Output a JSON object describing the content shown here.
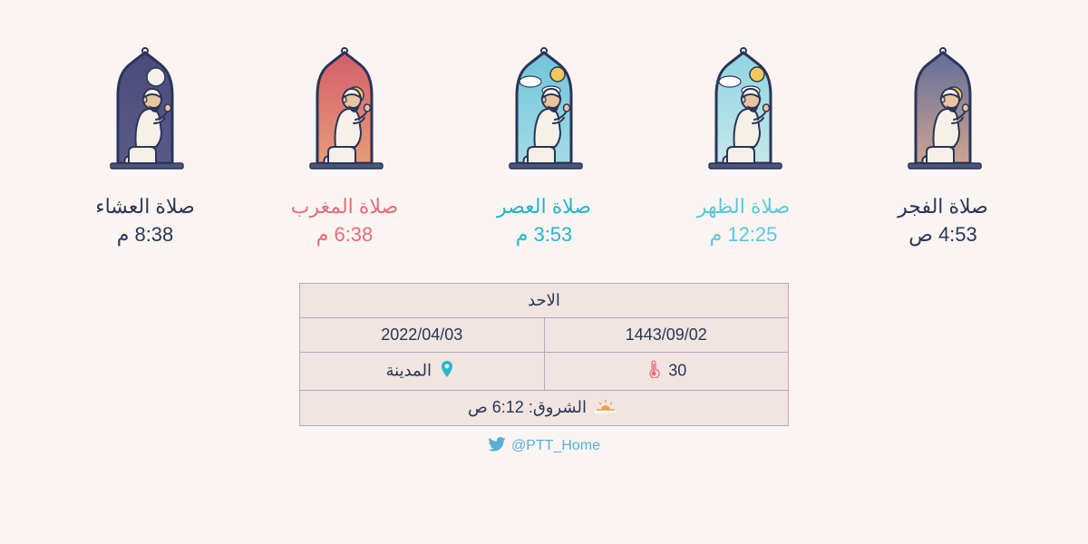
{
  "background_color": "#faf5f3",
  "prayers": [
    {
      "id": "isha",
      "name": "صلاة العشاء",
      "time": "8:38 م",
      "name_color": "#2b3557",
      "time_color": "#2b3557",
      "sky_top": "#4a4a7a",
      "sky_bottom": "#5b5b8a",
      "celestial": "moon",
      "celestial_color": "#f5f0e8"
    },
    {
      "id": "maghrib",
      "name": "صلاة المغرب",
      "time": "6:38 م",
      "name_color": "#e76b7a",
      "time_color": "#e76b7a",
      "sky_top": "#d45a6a",
      "sky_bottom": "#e8a07a",
      "celestial": "sun-setting",
      "celestial_color": "#f5c85a"
    },
    {
      "id": "asr",
      "name": "صلاة العصر",
      "time": "3:53 م",
      "name_color": "#24b6c9",
      "time_color": "#24b6c9",
      "sky_top": "#6bc4d8",
      "sky_bottom": "#a8dce8",
      "celestial": "sun-clouds",
      "celestial_color": "#f5c85a"
    },
    {
      "id": "dhuhr",
      "name": "صلاة الظهر",
      "time": "12:25 م",
      "name_color": "#5ac8d8",
      "time_color": "#5ac8d8",
      "sky_top": "#8dd4e0",
      "sky_bottom": "#c8e8ee",
      "celestial": "sun-clouds",
      "celestial_color": "#f5c85a"
    },
    {
      "id": "fajr",
      "name": "صلاة الفجر",
      "time": "4:53 ص",
      "name_color": "#2b3557",
      "time_color": "#2b3557",
      "sky_top": "#5a6a9a",
      "sky_bottom": "#d8a890",
      "celestial": "sun-rising",
      "celestial_color": "#f5c85a"
    }
  ],
  "info": {
    "day_name": "الاحد",
    "gregorian_date": "2022/04/03",
    "hijri_date": "1443/09/02",
    "city": "المدينة",
    "city_color": "#24b6c9",
    "temperature": "30",
    "temp_color": "#e76b7a",
    "sunrise_label": "الشروق:",
    "sunrise_time": "6:12 ص",
    "sunrise_color": "#e8a04a",
    "table_border_color": "#b8a8c2",
    "table_bg_color": "#f0e5e0"
  },
  "footer": {
    "twitter_handle": "@PTT_Home",
    "twitter_color": "#5aaed6"
  },
  "figure": {
    "outline_color": "#2b3557",
    "robe_color": "#f5f0e8",
    "skin_color": "#e8c4a0",
    "beard_color": "#2b3557",
    "cap_color": "#ffffff",
    "mat_color": "#4a5578"
  }
}
